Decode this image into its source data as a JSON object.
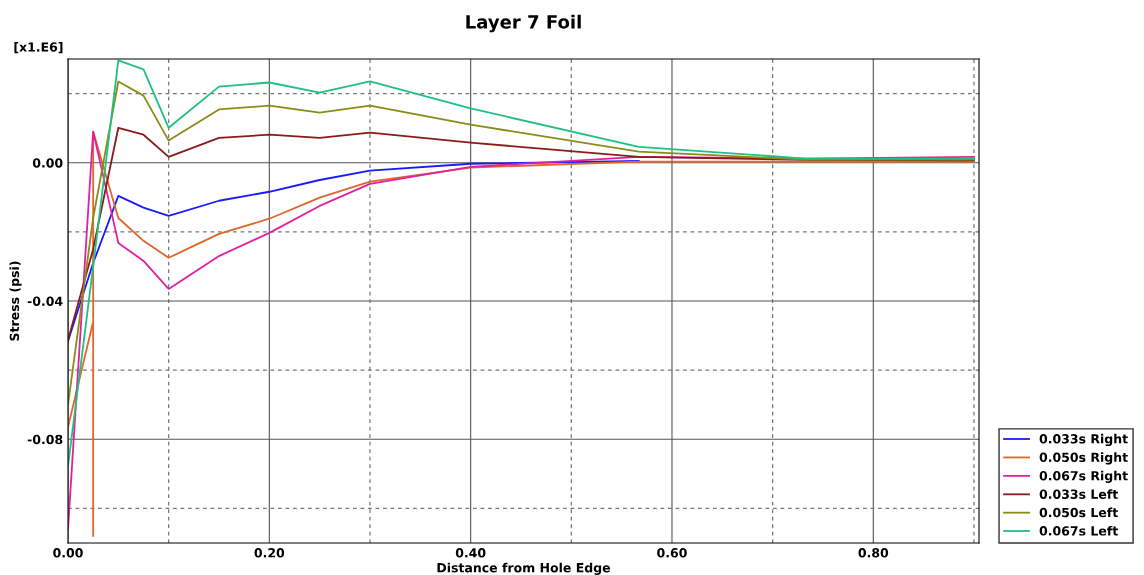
{
  "chart_data": {
    "type": "line",
    "title": "Layer 7 Foil",
    "xlabel": "Distance from Hole Edge",
    "ylabel": "Stress (psi)",
    "annotations": [
      "[x1.E6]"
    ],
    "x": [
      0,
      0.025,
      0.05,
      0.075,
      0.1,
      0.15,
      0.2,
      0.25,
      0.3,
      0.4,
      0.567,
      0.733,
      0.9
    ],
    "series": [
      {
        "name": "0.033s Right",
        "color": "#1a1aff",
        "values": [
          -0.0516,
          -0.029,
          -0.0096,
          -0.013,
          -0.0154,
          -0.011,
          -0.0084,
          -0.005,
          -0.0023,
          -0.0003,
          0.0005,
          null,
          null
        ]
      },
      {
        "name": "0.050s Right",
        "color": "#e0662a",
        "x": [
          0,
          0.025,
          0.025,
          0.025,
          0.05,
          0.075,
          0.1,
          0.15,
          0.2,
          0.25,
          0.3,
          0.4,
          0.567,
          0.733,
          0.9
        ],
        "values": [
          -0.0765,
          -0.046,
          -0.108,
          0.009,
          -0.016,
          -0.0226,
          -0.0275,
          -0.0206,
          -0.0162,
          -0.0101,
          -0.0055,
          -0.0014,
          0.0003,
          0.0003,
          0.0003
        ]
      },
      {
        "name": "0.067s Right",
        "color": "#e020a0",
        "values": [
          -0.106,
          0.009,
          -0.0232,
          -0.0284,
          -0.0365,
          -0.027,
          -0.0203,
          -0.0125,
          -0.0061,
          -0.0012,
          0.0017,
          0.0012,
          0.0017
        ]
      },
      {
        "name": "0.033s Left",
        "color": "#8b1a1a",
        "values": [
          -0.0513,
          -0.025,
          0.0101,
          0.0081,
          0.0017,
          0.0072,
          0.0081,
          0.0072,
          0.0087,
          0.0058,
          0.0017,
          0.0008,
          0.0007
        ]
      },
      {
        "name": "0.050s Left",
        "color": "#8b8b1a",
        "values": [
          -0.07,
          -0.016,
          0.0235,
          0.0194,
          0.0064,
          0.0154,
          0.0165,
          0.0145,
          0.0165,
          0.011,
          0.0032,
          0.0009,
          0.0009
        ]
      },
      {
        "name": "0.067s Left",
        "color": "#20c080",
        "values": [
          -0.0878,
          -0.03,
          0.0296,
          0.027,
          0.0101,
          0.022,
          0.0232,
          0.0203,
          0.0235,
          0.0157,
          0.0046,
          0.0012,
          0.0012
        ]
      }
    ],
    "xlim": [
      0,
      0.905
    ],
    "ylim": [
      -0.11,
      0.03
    ],
    "xticks": [
      {
        "value": 0,
        "label": "0.00"
      },
      {
        "value": 0.1,
        "label": null
      },
      {
        "value": 0.2,
        "label": "0.20"
      },
      {
        "value": 0.3,
        "label": null
      },
      {
        "value": 0.4,
        "label": "0.40"
      },
      {
        "value": 0.5,
        "label": null
      },
      {
        "value": 0.6,
        "label": "0.60"
      },
      {
        "value": 0.7,
        "label": null
      },
      {
        "value": 0.8,
        "label": "0.80"
      },
      {
        "value": 0.9,
        "label": null
      }
    ],
    "yticks": [
      {
        "value": 0.02,
        "label": null
      },
      {
        "value": 0,
        "label": "0.00"
      },
      {
        "value": -0.02,
        "label": null
      },
      {
        "value": -0.04,
        "label": "-0.04"
      },
      {
        "value": -0.06,
        "label": null
      },
      {
        "value": -0.08,
        "label": "-0.08"
      },
      {
        "value": -0.1,
        "label": null
      }
    ],
    "grid": true,
    "legend": "bottom right",
    "line_style": "solid",
    "marker": "none"
  }
}
